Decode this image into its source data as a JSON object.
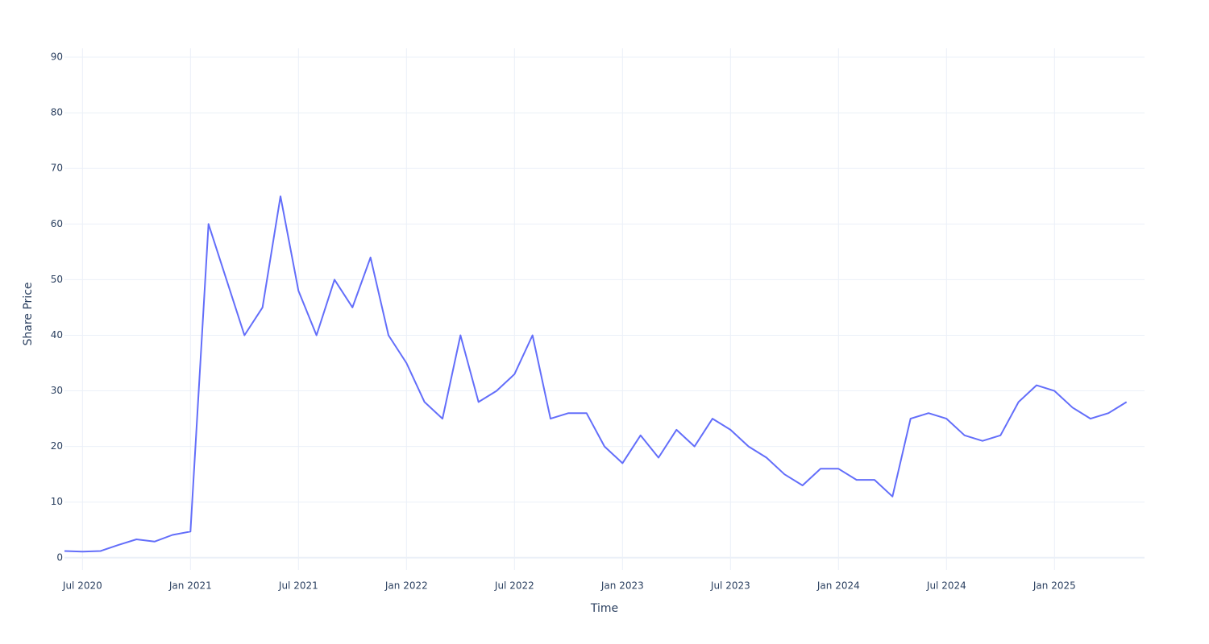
{
  "chart_data": {
    "type": "line",
    "xlabel": "Time",
    "ylabel": "Share Price",
    "x": [
      "2020-06",
      "2020-07",
      "2020-08",
      "2020-09",
      "2020-10",
      "2020-11",
      "2020-12",
      "2021-01",
      "2021-02",
      "2021-03",
      "2021-04",
      "2021-05",
      "2021-06",
      "2021-07",
      "2021-08",
      "2021-09",
      "2021-10",
      "2021-11",
      "2021-12",
      "2022-01",
      "2022-02",
      "2022-03",
      "2022-04",
      "2022-05",
      "2022-06",
      "2022-07",
      "2022-08",
      "2022-09",
      "2022-10",
      "2022-11",
      "2022-12",
      "2023-01",
      "2023-02",
      "2023-03",
      "2023-04",
      "2023-05",
      "2023-06",
      "2023-07",
      "2023-08",
      "2023-09",
      "2023-10",
      "2023-11",
      "2023-12",
      "2024-01",
      "2024-02",
      "2024-03",
      "2024-04",
      "2024-05",
      "2024-06",
      "2024-07",
      "2024-08",
      "2024-09",
      "2024-10",
      "2024-11",
      "2024-12",
      "2025-01",
      "2025-02",
      "2025-03",
      "2025-04",
      "2025-05"
    ],
    "series": [
      {
        "name": "Share Price",
        "color": "#636efa",
        "values": [
          1.2,
          1.1,
          1.2,
          2.3,
          3.3,
          2.9,
          4.1,
          4.7,
          60,
          50,
          40,
          45,
          65,
          48,
          40,
          50,
          45,
          54,
          40,
          35,
          28,
          25,
          40,
          28,
          30,
          33,
          40,
          25,
          26,
          26,
          20,
          17,
          22,
          18,
          23,
          20,
          25,
          23,
          20,
          18,
          15,
          13,
          16,
          16,
          14,
          14,
          11,
          25,
          26,
          25,
          22,
          21,
          22,
          28,
          31,
          30,
          27,
          25,
          26,
          28
        ]
      }
    ],
    "xlim": [
      "2020-06",
      "2025-06"
    ],
    "xticks": [
      {
        "value": "2020-07",
        "label": "Jul 2020"
      },
      {
        "value": "2021-01",
        "label": "Jan 2021"
      },
      {
        "value": "2021-07",
        "label": "Jul 2021"
      },
      {
        "value": "2022-01",
        "label": "Jan 2022"
      },
      {
        "value": "2022-07",
        "label": "Jul 2022"
      },
      {
        "value": "2023-01",
        "label": "Jan 2023"
      },
      {
        "value": "2023-07",
        "label": "Jul 2023"
      },
      {
        "value": "2024-01",
        "label": "Jan 2024"
      },
      {
        "value": "2024-07",
        "label": "Jul 2024"
      },
      {
        "value": "2025-01",
        "label": "Jan 2025"
      }
    ],
    "ylim": [
      -2.2,
      91.6
    ],
    "yticks": [
      0,
      10,
      20,
      30,
      40,
      50,
      60,
      70,
      80,
      90
    ],
    "grid": true
  }
}
